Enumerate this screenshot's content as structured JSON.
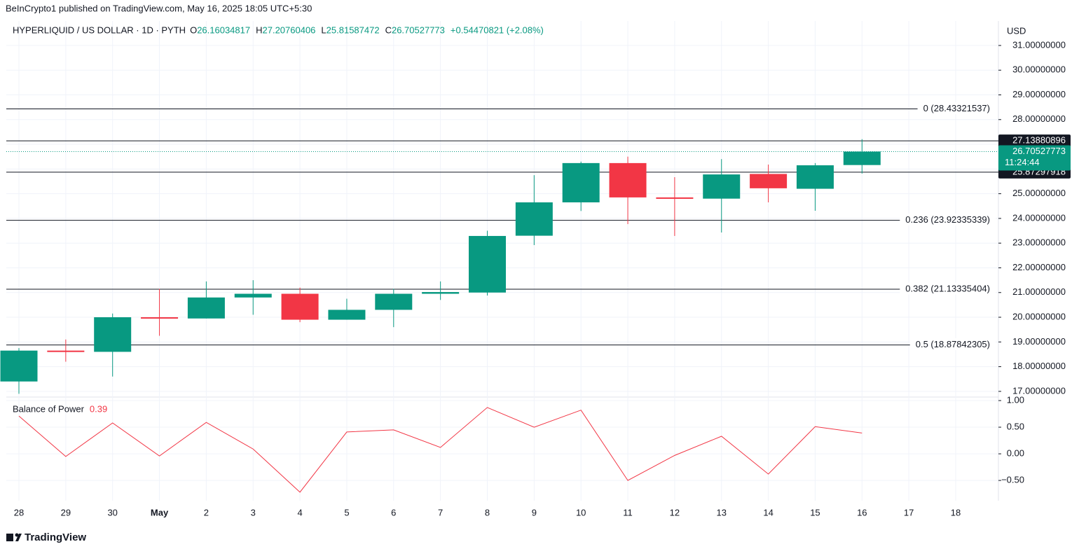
{
  "header": {
    "published_by": "BeInCrypto1 published on TradingView.com, May 16, 2025 18:05 UTC+5:30"
  },
  "chart_data": {
    "type": "candlestick",
    "title": "HYPERLIQUID / US DOLLAR · 1D · PYTH",
    "legend": [
      {
        "key": "O",
        "value": 26.16034817
      },
      {
        "key": "H",
        "value": 27.20760406
      },
      {
        "key": "L",
        "value": 25.81587472
      },
      {
        "key": "C",
        "value": 26.70527773
      }
    ],
    "change": "+0.54470821 (+2.08%)",
    "currency": "USD",
    "up_color": "#089981",
    "down_color": "#f23645",
    "categories": [
      "28",
      "29",
      "30",
      "May",
      "2",
      "3",
      "4",
      "5",
      "6",
      "7",
      "8",
      "9",
      "10",
      "11",
      "12",
      "13",
      "14",
      "15",
      "16",
      "17",
      "18"
    ],
    "open": [
      17.4,
      18.65,
      18.6,
      20.0,
      19.95,
      20.8,
      20.95,
      19.9,
      20.3,
      20.95,
      21.0,
      23.3,
      24.65,
      26.24,
      24.85,
      24.8,
      25.8,
      25.2,
      26.16034817,
      null,
      null
    ],
    "high": [
      18.75,
      19.1,
      20.15,
      21.15,
      21.45,
      21.5,
      21.2,
      20.75,
      21.15,
      21.45,
      23.5,
      25.75,
      26.3,
      26.5,
      25.67,
      26.4,
      26.18,
      26.24,
      27.20760406,
      null,
      null
    ],
    "low": [
      16.9,
      18.2,
      17.6,
      19.25,
      19.95,
      20.1,
      19.8,
      19.9,
      19.6,
      20.7,
      20.88,
      22.92,
      24.3,
      23.77,
      23.29,
      23.43,
      24.65,
      24.31,
      25.81587472,
      null,
      null
    ],
    "close": [
      18.65,
      18.6,
      20.0,
      19.95,
      20.8,
      20.95,
      19.9,
      20.3,
      20.95,
      21.02,
      23.29,
      24.65,
      26.24,
      24.85,
      24.8,
      25.78,
      25.22,
      26.15,
      26.70527773,
      null,
      null
    ],
    "ylim": [
      16.77,
      31.99
    ],
    "yticks": [
      {
        "value": 17,
        "label": "17.00000000"
      },
      {
        "value": 18,
        "label": "18.00000000"
      },
      {
        "value": 19,
        "label": "19.00000000"
      },
      {
        "value": 20,
        "label": "20.00000000"
      },
      {
        "value": 21,
        "label": "21.00000000"
      },
      {
        "value": 22,
        "label": "22.00000000"
      },
      {
        "value": 23,
        "label": "23.00000000"
      },
      {
        "value": 24,
        "label": "24.00000000"
      },
      {
        "value": 25,
        "label": "25.00000000"
      },
      {
        "value": 26,
        "label": "26.00000000"
      },
      {
        "value": 27,
        "label": "27.00000000"
      },
      {
        "value": 28,
        "label": "28.00000000"
      },
      {
        "value": 29,
        "label": "29.00000000"
      },
      {
        "value": 30,
        "label": "30.00000000"
      },
      {
        "value": 31,
        "label": "31.00000000"
      }
    ],
    "fib_levels": [
      {
        "label": "0 (28.43321537)",
        "value": 28.43321537
      },
      {
        "label": "0.236 (23.92335339)",
        "value": 23.92335339
      },
      {
        "label": "0.382 (21.13335404)",
        "value": 21.13335404
      },
      {
        "label": "0.5 (18.87842305)",
        "value": 18.87842305
      }
    ],
    "price_lines": [
      27.13880896,
      25.87297918
    ],
    "last_price": 26.70527773,
    "countdown": "11:24:44",
    "grid": true,
    "indicator": {
      "type": "line",
      "name": "Balance of Power",
      "last": 0.39,
      "color": "#f23645",
      "values": [
        0.71,
        -0.05,
        0.58,
        -0.04,
        0.59,
        0.09,
        -0.72,
        0.41,
        0.45,
        0.12,
        0.87,
        0.5,
        0.82,
        -0.5,
        -0.03,
        0.33,
        -0.38,
        0.51,
        0.39,
        null,
        null
      ],
      "ylim": [
        -0.88,
        1.066
      ],
      "yticks": [
        {
          "value": 1,
          "label": "1.00"
        },
        {
          "value": 0.5,
          "label": "0.50"
        },
        {
          "value": 0,
          "label": "0.00"
        },
        {
          "value": -0.5,
          "label": "−0.50"
        }
      ]
    }
  },
  "footer": {
    "brand": "TradingView"
  }
}
